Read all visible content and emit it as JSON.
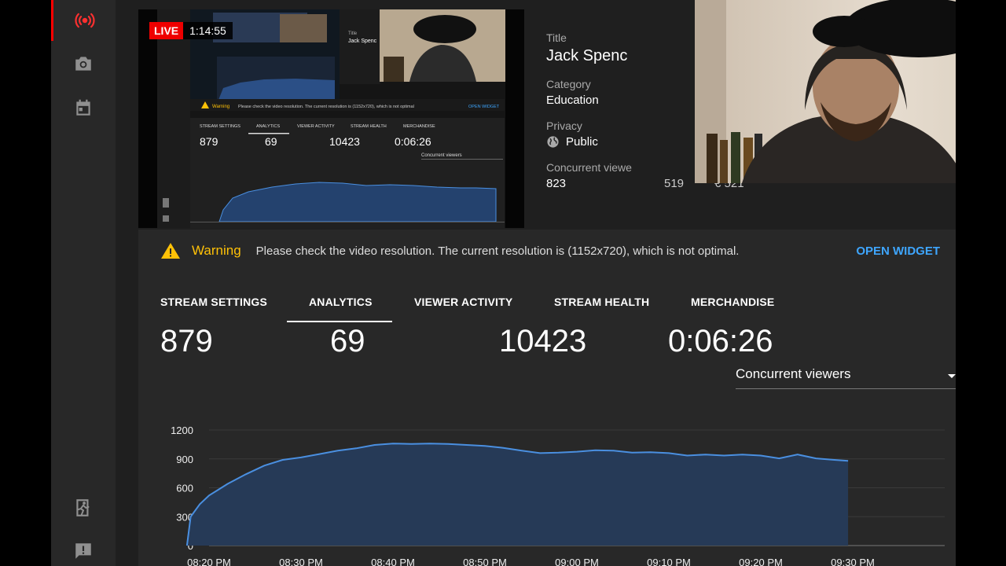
{
  "live": {
    "badge": "LIVE",
    "elapsed": "1:14:55"
  },
  "info": {
    "title_label": "Title",
    "title_value": "Jack Spenc",
    "category_label": "Category",
    "category_value": "Education",
    "privacy_label": "Privacy",
    "privacy_value": "Public",
    "viewers_label": "Concurrent viewe",
    "viewers_value": "823",
    "extra_a": "519",
    "extra_b": "€ 521"
  },
  "warning": {
    "title": "Warning",
    "message": "Please check the video resolution. The current resolution is (1152x720), which is not optimal.",
    "action": "OPEN WIDGET"
  },
  "tabs": [
    "STREAM SETTINGS",
    "ANALYTICS",
    "VIEWER ACTIVITY",
    "STREAM HEALTH",
    "MERCHANDISE"
  ],
  "stats": [
    "879",
    "69",
    "10423",
    "0:06:26"
  ],
  "dropdown": {
    "selected": "Concurrent viewers"
  },
  "preview_mini": {
    "tabs": [
      "STREAM SETTINGS",
      "ANALYTICS",
      "VIEWER ACTIVITY",
      "STREAM HEALTH",
      "MERCHANDISE"
    ],
    "stats": [
      "879",
      "69",
      "10423",
      "0:06:26"
    ],
    "warning": "Warning",
    "message": "Please check the video resolution. The current resolution is (1152x720), which is not optimal",
    "action": "OPEN WIDGET",
    "title_label": "Title",
    "title_value": "Jack Spenc",
    "dropdown": "Concurrent viewers"
  },
  "colors": {
    "accent": "#3ea6ff",
    "warning": "#ffc107",
    "live": "#ee0000",
    "series": "#4a8fe0"
  },
  "chart_data": {
    "type": "area",
    "title": "",
    "xlabel": "",
    "ylabel": "",
    "ylim": [
      0,
      1200
    ],
    "yticks": [
      0,
      300,
      600,
      900,
      1200
    ],
    "xlim": [
      0,
      72
    ],
    "xticks": [
      {
        "x": 0,
        "label": "08:20 PM"
      },
      {
        "x": 10,
        "label": "08:30 PM"
      },
      {
        "x": 20,
        "label": "08:40 PM"
      },
      {
        "x": 30,
        "label": "08:50 PM"
      },
      {
        "x": 40,
        "label": "09:00 PM"
      },
      {
        "x": 50,
        "label": "09:10 PM"
      },
      {
        "x": 60,
        "label": "09:20 PM"
      },
      {
        "x": 70,
        "label": "09:30 PM"
      }
    ],
    "grid": true,
    "series": [
      {
        "x": [
          -2.4,
          -2,
          -1,
          0,
          1,
          2,
          4,
          6,
          8,
          10,
          12,
          14,
          16,
          18,
          20,
          22,
          24,
          26,
          28,
          30,
          32,
          34,
          36,
          38,
          40,
          42,
          44,
          46,
          48,
          50,
          52,
          54,
          56,
          58,
          60,
          62,
          64,
          66,
          68,
          69.5
        ],
        "y": [
          0,
          300,
          430,
          520,
          580,
          640,
          740,
          830,
          890,
          915,
          950,
          985,
          1010,
          1045,
          1060,
          1055,
          1060,
          1055,
          1045,
          1035,
          1015,
          985,
          960,
          965,
          975,
          990,
          985,
          965,
          970,
          960,
          935,
          945,
          935,
          945,
          935,
          905,
          945,
          905,
          890,
          880
        ]
      }
    ]
  }
}
